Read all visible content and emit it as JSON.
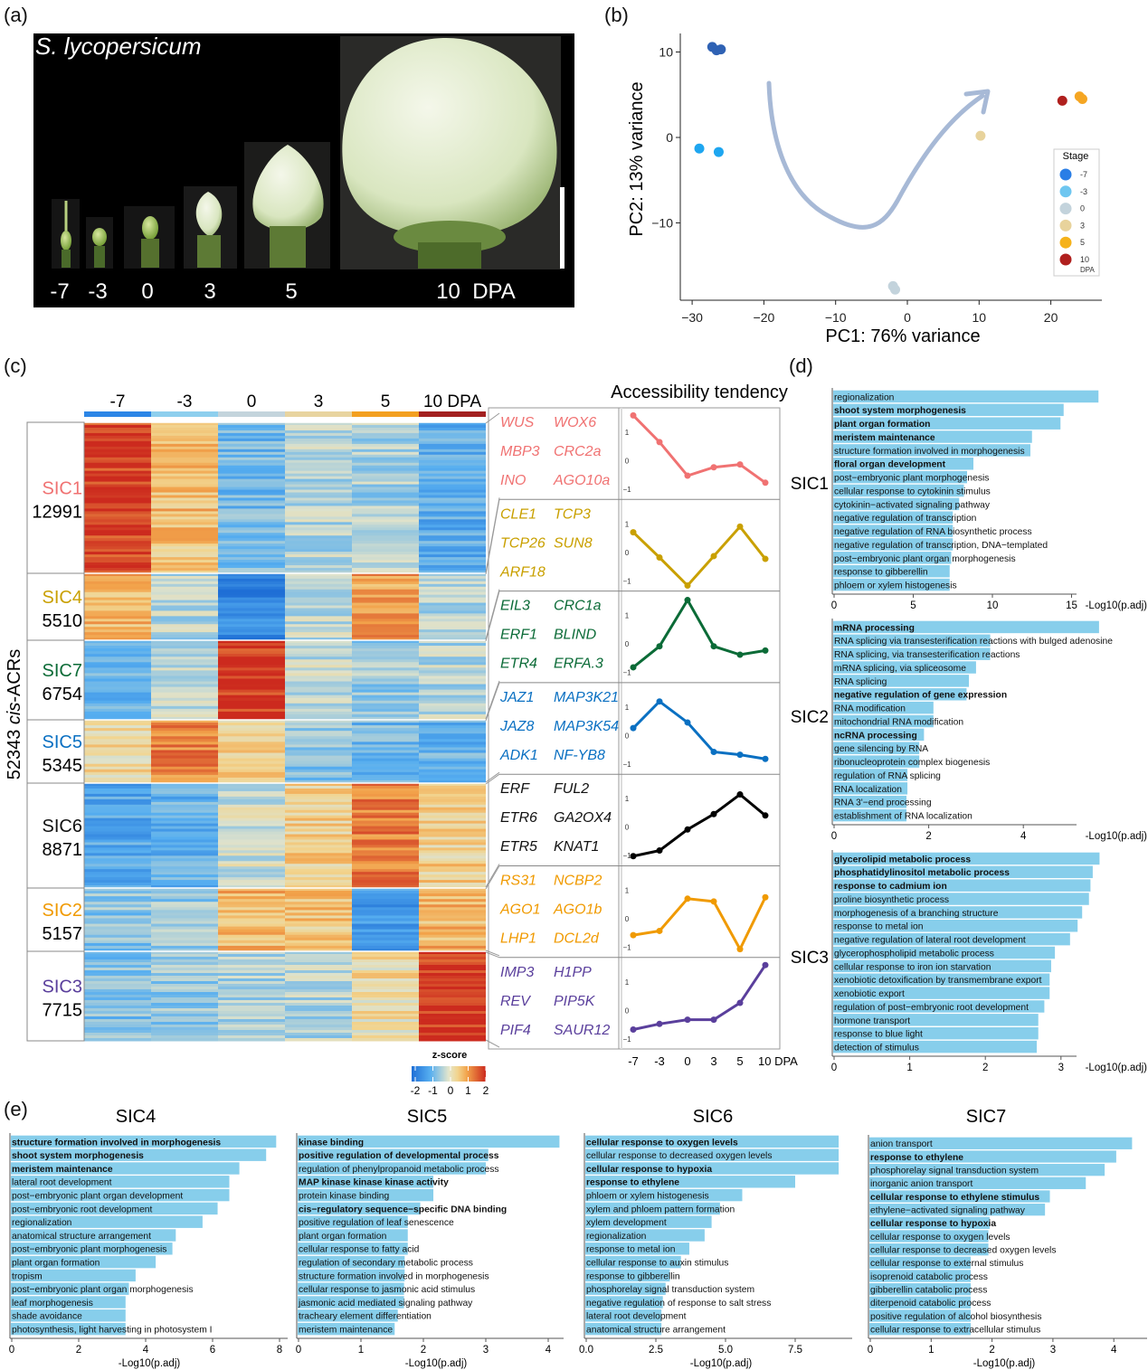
{
  "panel_labels": [
    "(a)",
    "(b)",
    "(c)",
    "(d)",
    "(e)"
  ],
  "panel_a": {
    "title": "S. lycopersicum",
    "stage_labels": [
      "-7",
      "-3",
      "0",
      "3",
      "5",
      "10  DPA"
    ]
  },
  "chart_data": [
    {
      "type": "scatter",
      "xlabel": "PC1: 76% variance",
      "ylabel": "PC2: 13% variance",
      "xlim": [
        -31,
        27
      ],
      "ylim": [
        -19,
        12
      ],
      "xticks": [
        -30,
        -20,
        -10,
        0,
        10,
        20
      ],
      "yticks": [
        10,
        0,
        -10
      ],
      "grid": false,
      "legend_title": "Stage",
      "legend_position": "right",
      "legend_unit": "DPA",
      "annotation": "trajectory arrow from -7 through 0 to 10 DPA",
      "series": [
        {
          "name": "-7",
          "color": "#2f62b4",
          "legend_color": "#2a7ee6",
          "points": [
            [
              -27.2,
              10.6
            ],
            [
              -26.6,
              10.2
            ],
            [
              -26.0,
              10.3
            ]
          ]
        },
        {
          "name": "-3",
          "color": "#1ea6f0",
          "legend_color": "#6ec6f0",
          "points": [
            [
              -29.0,
              -1.3
            ],
            [
              -26.3,
              -1.7
            ]
          ]
        },
        {
          "name": "0",
          "color": "#c3d3dc",
          "legend_color": "#c3d3dc",
          "points": [
            [
              -2.0,
              -17.4
            ],
            [
              -1.7,
              -17.8
            ]
          ]
        },
        {
          "name": "3",
          "color": "#e8d39c",
          "legend_color": "#e8d39c",
          "points": [
            [
              10.2,
              0.2
            ]
          ]
        },
        {
          "name": "5",
          "color": "#f5a623",
          "legend_color": "#f5b21a",
          "points": [
            [
              24.0,
              4.8
            ],
            [
              24.4,
              4.5
            ]
          ]
        },
        {
          "name": "10",
          "color": "#b0201e",
          "legend_color": "#b0201e",
          "points": [
            [
              21.6,
              4.3
            ]
          ]
        }
      ]
    },
    {
      "type": "heatmap",
      "columns": [
        "-7",
        "-3",
        "0",
        "3",
        "5",
        "10 DPA"
      ],
      "column_colors": [
        "#2c86e6",
        "#8ecfee",
        "#c4d4dc",
        "#e8d4a0",
        "#f3a020",
        "#a32020"
      ],
      "ylabel_count": "52343",
      "ylabel_italic": "cis",
      "ylabel_suffix": "-ACRs",
      "colorbar": {
        "title": "z-score",
        "ticks": [
          "-2",
          "-1",
          "0",
          "1",
          "2"
        ]
      },
      "clusters": [
        {
          "name": "SIC1",
          "count": "12991",
          "color": "#f07272",
          "genes": [
            "WUS",
            "WOX6",
            "MBP3",
            "CRC2a",
            "INO",
            "AGO10a"
          ],
          "mean_z": [
            1.8,
            0.7,
            -0.8,
            -0.3,
            -0.4,
            -1.0
          ]
        },
        {
          "name": "SIC4",
          "count": "5510",
          "color": "#c9a000",
          "genes": [
            "CLE1",
            "TCP3",
            "TCP26",
            "SUN8",
            "ARF18"
          ],
          "mean_z": [
            0.8,
            -0.3,
            -1.6,
            -0.2,
            1.0,
            -0.3
          ]
        },
        {
          "name": "SIC7",
          "count": "6754",
          "color": "#0b6b37",
          "genes": [
            "EIL3",
            "CRC1a",
            "ERF1",
            "BLIND",
            "ETR4",
            "ERFA.3"
          ],
          "mean_z": [
            -0.9,
            -0.2,
            1.9,
            -0.2,
            -0.5,
            -0.3
          ]
        },
        {
          "name": "SIC5",
          "count": "5345",
          "color": "#0a70c2",
          "genes": [
            "JAZ1",
            "MAP3K21",
            "JAZ8",
            "MAP3K54",
            "ADK1",
            "NF-YB8"
          ],
          "mean_z": [
            0.3,
            1.3,
            0.5,
            -0.6,
            -0.8,
            -0.9
          ]
        },
        {
          "name": "SIC6",
          "count": "8871",
          "color": "#111111",
          "genes": [
            "ERF",
            "FUL2",
            "ETR6",
            "GA2OX4",
            "ETR5",
            "KNAT1"
          ],
          "mean_z": [
            -1.1,
            -0.9,
            -0.1,
            0.5,
            1.3,
            0.5
          ]
        },
        {
          "name": "SIC2",
          "count": "5157",
          "color": "#f09a00",
          "genes": [
            "RS31",
            "NCBP2",
            "AGO1",
            "AGO1b",
            "LHP1",
            "DCL2d"
          ],
          "mean_z": [
            -0.6,
            -0.5,
            0.8,
            0.6,
            -1.3,
            0.8
          ]
        },
        {
          "name": "SIC3",
          "count": "7715",
          "color": "#5a3f9c",
          "genes": [
            "IMP3",
            "H1PP",
            "REV",
            "PIP5K",
            "PIF4",
            "SAUR12"
          ],
          "mean_z": [
            -0.7,
            -0.5,
            -0.4,
            -0.3,
            0.3,
            1.9
          ]
        }
      ]
    },
    {
      "type": "line",
      "title": "Accessibility tendency",
      "x": [
        -7,
        -3,
        0,
        3,
        5,
        10
      ],
      "xtick_labels": [
        "-7",
        "-3",
        "0",
        "3",
        "5",
        "10 DPA"
      ],
      "yticks": [
        "1",
        "0",
        "-1"
      ],
      "series": [
        {
          "cluster": "SIC1",
          "color": "#f07272",
          "values": [
            1.6,
            0.65,
            -0.55,
            -0.25,
            -0.15,
            -0.8
          ]
        },
        {
          "cluster": "SIC4",
          "color": "#c9a000",
          "values": [
            0.7,
            -0.2,
            -1.2,
            -0.15,
            0.9,
            -0.25
          ]
        },
        {
          "cluster": "SIC7",
          "color": "#0b6b37",
          "values": [
            -0.85,
            -0.1,
            1.55,
            -0.1,
            -0.4,
            -0.25
          ]
        },
        {
          "cluster": "SIC5",
          "color": "#0a70c2",
          "values": [
            0.25,
            1.2,
            0.45,
            -0.6,
            -0.7,
            -0.85
          ]
        },
        {
          "cluster": "SIC6",
          "color": "#000000",
          "values": [
            -1.05,
            -0.85,
            -0.1,
            0.45,
            1.15,
            0.4
          ]
        },
        {
          "cluster": "SIC2",
          "color": "#f09a00",
          "values": [
            -0.6,
            -0.45,
            0.7,
            0.6,
            -1.1,
            0.75
          ]
        },
        {
          "cluster": "SIC3",
          "color": "#5a3f9c",
          "values": [
            -0.7,
            -0.5,
            -0.35,
            -0.35,
            0.25,
            1.6
          ]
        }
      ]
    },
    {
      "type": "bar",
      "orientation": "horizontal",
      "title": "SIC1",
      "xlabel": "-Log10(p.adj)",
      "xticks": [
        0,
        5,
        10,
        15
      ],
      "bar_color": "#87ceeb",
      "categories": [
        "regionalization",
        "shoot system morphogenesis",
        "plant organ formation",
        "meristem maintenance",
        "structure formation involved in morphogenesis",
        "floral organ development",
        "post−embryonic plant morphogenesis",
        "cellular response to cytokinin stimulus",
        "cytokinin−activated signaling pathway",
        "negative regulation of transcription",
        "negative regulation of RNA biosynthetic process",
        "negative regulation of transcription, DNA−templated",
        "post−embryonic plant organ morphogenesis",
        "response to gibberellin",
        "phloem or xylem histogenesis"
      ],
      "values": [
        16.7,
        14.5,
        14.3,
        12.5,
        12.4,
        8.8,
        8.4,
        8.2,
        7.9,
        7.5,
        7.5,
        7.5,
        7.4,
        7.3,
        7.3
      ],
      "bold": [
        false,
        true,
        true,
        true,
        false,
        true,
        false,
        false,
        false,
        false,
        false,
        false,
        false,
        false,
        false
      ]
    },
    {
      "type": "bar",
      "orientation": "horizontal",
      "title": "SIC2",
      "xlabel": "-Log10(p.adj)",
      "xticks": [
        0,
        2,
        4
      ],
      "bar_color": "#87ceeb",
      "categories": [
        "mRNA processing",
        "RNA splicing via transesterification reactions with bulged adenosine",
        "RNA splicing, via transesterification reactions",
        "mRNA splicing, via spliceosome",
        "RNA splicing",
        "negative regulation of gene expression",
        "RNA modification",
        "mitochondrial RNA modification",
        "ncRNA processing",
        "gene silencing by RNA",
        "ribonucleoprotein complex biogenesis",
        "regulation of RNA splicing",
        "RNA localization",
        "RNA 3'−end processing",
        "establishment of RNA localization"
      ],
      "values": [
        5.6,
        3.3,
        3.3,
        3.0,
        2.85,
        2.8,
        2.1,
        2.1,
        1.9,
        1.8,
        1.8,
        1.55,
        1.55,
        1.53,
        1.53
      ],
      "bold": [
        true,
        false,
        false,
        false,
        false,
        true,
        false,
        false,
        true,
        false,
        false,
        false,
        false,
        false,
        false
      ]
    },
    {
      "type": "bar",
      "orientation": "horizontal",
      "title": "SIC3",
      "xlabel": "-Log10(p.adj)",
      "xticks": [
        0,
        1,
        2,
        3
      ],
      "bar_color": "#87ceeb",
      "categories": [
        "glycerolipid metabolic process",
        "phosphatidylinositol metabolic process",
        "response to cadmium ion",
        "proline biosynthetic process",
        "morphogenesis of a branching structure",
        "response to metal ion",
        "negative regulation of lateral root development",
        "glycerophospholipid metabolic process",
        "cellular response to iron ion starvation",
        "xenobiotic detoxification by transmembrane export",
        "xenobiotic export",
        "regulation of post−embryonic root development",
        "hormone transport",
        "response to blue light",
        "detection of stimulus"
      ],
      "values": [
        3.51,
        3.42,
        3.39,
        3.37,
        3.28,
        3.22,
        3.12,
        2.92,
        2.87,
        2.85,
        2.85,
        2.78,
        2.7,
        2.7,
        2.68
      ],
      "bold": [
        true,
        true,
        true,
        false,
        false,
        false,
        false,
        false,
        false,
        false,
        false,
        false,
        false,
        false,
        false
      ]
    },
    {
      "type": "bar",
      "orientation": "horizontal",
      "title": "SIC4",
      "xlabel": "-Log10(p.adj)",
      "xticks": [
        0,
        2,
        4,
        6,
        8
      ],
      "bar_color": "#87ceeb",
      "categories": [
        "structure formation involved in morphogenesis",
        "shoot system morphogenesis",
        "meristem maintenance",
        "lateral root development",
        "post−embryonic plant organ development",
        "post−embryonic root development",
        "regionalization",
        "anatomical structure arrangement",
        "post−embryonic plant morphogenesis",
        "plant organ formation",
        "tropism",
        "post−embryonic plant organ morphogenesis",
        "leaf morphogenesis",
        "shade avoidance",
        "photosynthesis, light harvesting in photosystem I"
      ],
      "values": [
        7.9,
        7.6,
        6.8,
        6.5,
        6.5,
        6.15,
        5.7,
        4.9,
        4.8,
        4.3,
        3.7,
        3.5,
        3.4,
        3.4,
        3.4
      ],
      "bold": [
        true,
        true,
        true,
        false,
        false,
        false,
        false,
        false,
        false,
        false,
        false,
        false,
        false,
        false,
        false
      ]
    },
    {
      "type": "bar",
      "orientation": "horizontal",
      "title": "SIC5",
      "xlabel": "-Log10(p.adj)",
      "xticks": [
        0,
        1,
        2,
        3,
        4
      ],
      "bar_color": "#87ceeb",
      "categories": [
        "kinase binding",
        "positive regulation of developmental process",
        "regulation of phenylpropanoid metabolic process",
        "MAP kinase kinase kinase activity",
        "protein kinase binding",
        "cis−regulatory sequence−specific DNA binding",
        "positive regulation of leaf senescence",
        "plant organ formation",
        "cellular response to fatty acid",
        "regulation of secondary metabolic process",
        "structure formation involved in morphogenesis",
        "cellular response to jasmonic acid stimulus",
        "jasmonic acid mediated signaling pathway",
        "tracheary element differentiation",
        "meristem maintenance"
      ],
      "values": [
        4.18,
        3.04,
        3.0,
        2.16,
        2.16,
        1.95,
        1.75,
        1.75,
        1.75,
        1.7,
        1.7,
        1.69,
        1.69,
        1.59,
        1.54
      ],
      "bold": [
        true,
        true,
        false,
        true,
        false,
        true,
        false,
        false,
        false,
        false,
        false,
        false,
        false,
        false,
        false
      ]
    },
    {
      "type": "bar",
      "orientation": "horizontal",
      "title": "SIC6",
      "xlabel": "-Log10(p.adj)",
      "xticks": [
        0.0,
        2.5,
        5.0,
        7.5
      ],
      "xtick_labels": [
        "0.0",
        "2.5",
        "5.0",
        "7.5"
      ],
      "bar_color": "#87ceeb",
      "categories": [
        "cellular response to oxygen levels",
        "cellular response to decreased oxygen levels",
        "cellular response to hypoxia",
        "response to ethylene",
        "phloem or xylem histogenesis",
        "xylem and phloem pattern formation",
        "xylem development",
        "regionalization",
        "response to metal ion",
        "cellular response to auxin stimulus",
        "response to gibberellin",
        "phosphorelay signal transduction system",
        "negative regulation of response to salt stress",
        "lateral root development",
        "anatomical structure arrangement"
      ],
      "values": [
        9.06,
        9.06,
        9.06,
        7.5,
        5.6,
        4.8,
        4.5,
        4.25,
        3.7,
        3.4,
        3.0,
        2.85,
        2.75,
        2.7,
        2.7
      ],
      "bold": [
        true,
        false,
        true,
        true,
        false,
        false,
        false,
        false,
        false,
        false,
        false,
        false,
        false,
        false,
        false
      ]
    },
    {
      "type": "bar",
      "orientation": "horizontal",
      "title": "SIC7",
      "xlabel": "-Log10(p.adj)",
      "xticks": [
        0,
        1,
        2,
        3,
        4
      ],
      "bar_color": "#87ceeb",
      "categories": [
        "anion transport",
        "response to ethylene",
        "phosphorelay signal transduction system",
        "inorganic anion transport",
        "cellular response to ethylene stimulus",
        "ethylene−activated signaling pathway",
        "cellular response to hypoxia",
        "cellular response to oxygen levels",
        "cellular response to decreased oxygen levels",
        "cellular response to external stimulus",
        "isoprenoid catabolic process",
        "gibberellin catabolic process",
        "diterpenoid catabolic process",
        "positive regulation of alcohol biosynthesis",
        "cellular response to extracellular stimulus"
      ],
      "values": [
        4.3,
        4.04,
        3.85,
        3.54,
        2.95,
        2.87,
        1.96,
        1.94,
        1.94,
        1.65,
        1.65,
        1.65,
        1.65,
        1.65,
        1.65
      ],
      "bold": [
        false,
        true,
        false,
        false,
        true,
        false,
        true,
        false,
        false,
        false,
        false,
        false,
        false,
        false,
        false
      ]
    }
  ]
}
